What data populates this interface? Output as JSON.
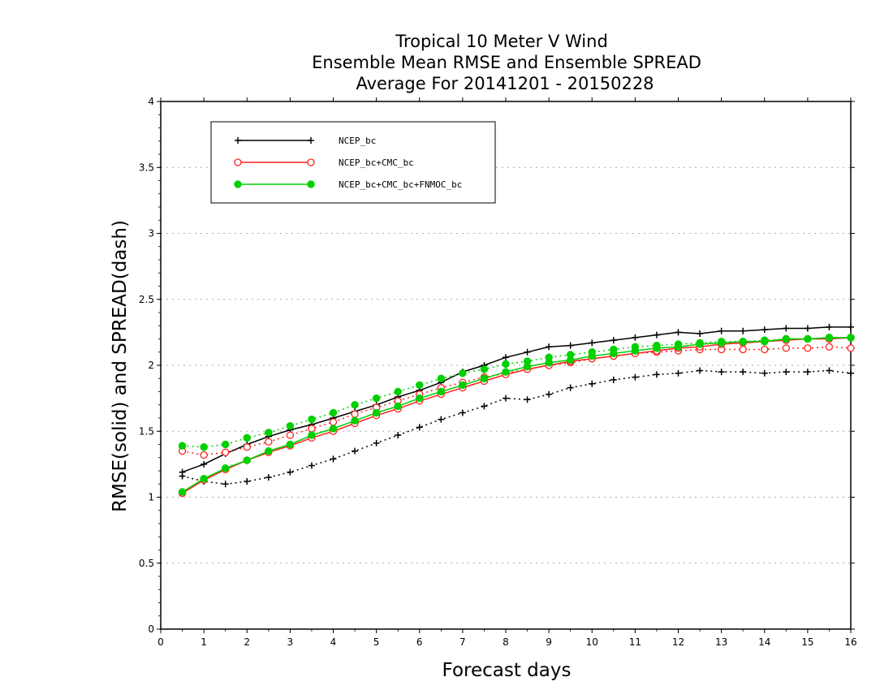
{
  "chart_data": {
    "type": "line",
    "title_lines": [
      "Tropical 10 Meter V Wind",
      "Ensemble Mean RMSE and Ensemble SPREAD",
      "Average For 20141201 - 20150228"
    ],
    "xlabel": "Forecast days",
    "ylabel": "RMSE(solid) and SPREAD(dash)",
    "xlim": [
      0,
      16
    ],
    "ylim": [
      0,
      4
    ],
    "xticks": [
      "0",
      "1",
      "2",
      "3",
      "4",
      "5",
      "6",
      "7",
      "8",
      "9",
      "10",
      "11",
      "12",
      "13",
      "14",
      "15",
      "16"
    ],
    "yticks": [
      "0",
      "0.5",
      "1",
      "1.5",
      "2",
      "2.5",
      "3",
      "3.5",
      "4"
    ],
    "grid": "horizontal dotted",
    "legend_position": "top-left",
    "x": [
      0.5,
      1,
      1.5,
      2,
      2.5,
      3,
      3.5,
      4,
      4.5,
      5,
      5.5,
      6,
      6.5,
      7,
      7.5,
      8,
      8.5,
      9,
      9.5,
      10,
      10.5,
      11,
      11.5,
      12,
      12.5,
      13,
      13.5,
      14,
      14.5,
      15,
      15.5,
      16
    ],
    "series": [
      {
        "name": "NCEP_bc",
        "color": "#000000",
        "marker": "plus",
        "rmse": [
          1.19,
          1.25,
          1.33,
          1.4,
          1.46,
          1.51,
          1.55,
          1.6,
          1.65,
          1.7,
          1.76,
          1.81,
          1.87,
          1.95,
          2.0,
          2.06,
          2.1,
          2.14,
          2.15,
          2.17,
          2.19,
          2.21,
          2.23,
          2.25,
          2.24,
          2.26,
          2.26,
          2.27,
          2.28,
          2.28,
          2.29,
          2.29
        ],
        "spread": [
          1.16,
          1.12,
          1.1,
          1.12,
          1.15,
          1.19,
          1.24,
          1.29,
          1.35,
          1.41,
          1.47,
          1.53,
          1.59,
          1.64,
          1.69,
          1.75,
          1.74,
          1.78,
          1.83,
          1.86,
          1.89,
          1.91,
          1.93,
          1.94,
          1.96,
          1.95,
          1.95,
          1.94,
          1.95,
          1.95,
          1.96,
          1.94
        ]
      },
      {
        "name": "NCEP_bc+CMC_bc",
        "color": "#ff2020",
        "marker": "open-circle",
        "rmse": [
          1.03,
          1.13,
          1.21,
          1.28,
          1.34,
          1.39,
          1.45,
          1.5,
          1.56,
          1.62,
          1.67,
          1.73,
          1.78,
          1.83,
          1.88,
          1.93,
          1.97,
          2.0,
          2.03,
          2.05,
          2.07,
          2.09,
          2.11,
          2.13,
          2.14,
          2.16,
          2.17,
          2.18,
          2.19,
          2.2,
          2.2,
          2.21
        ],
        "spread": [
          1.35,
          1.32,
          1.34,
          1.38,
          1.42,
          1.47,
          1.52,
          1.57,
          1.63,
          1.68,
          1.73,
          1.78,
          1.83,
          1.87,
          1.91,
          1.94,
          1.97,
          2.0,
          2.02,
          2.05,
          2.07,
          2.09,
          2.1,
          2.11,
          2.12,
          2.12,
          2.12,
          2.12,
          2.13,
          2.13,
          2.14,
          2.13
        ]
      },
      {
        "name": "NCEP_bc+CMC_bc+FNMOC_bc",
        "color": "#00d000",
        "marker": "filled-circle",
        "rmse": [
          1.04,
          1.14,
          1.22,
          1.28,
          1.35,
          1.4,
          1.47,
          1.52,
          1.58,
          1.64,
          1.69,
          1.75,
          1.8,
          1.85,
          1.9,
          1.95,
          1.99,
          2.02,
          2.04,
          2.07,
          2.09,
          2.11,
          2.13,
          2.14,
          2.16,
          2.17,
          2.18,
          2.18,
          2.2,
          2.2,
          2.21,
          2.21
        ],
        "spread": [
          1.39,
          1.38,
          1.4,
          1.45,
          1.49,
          1.54,
          1.59,
          1.64,
          1.7,
          1.75,
          1.8,
          1.85,
          1.9,
          1.94,
          1.97,
          2.01,
          2.03,
          2.06,
          2.08,
          2.1,
          2.12,
          2.14,
          2.15,
          2.16,
          2.17,
          2.18,
          2.18,
          2.19,
          2.2,
          2.2,
          2.21,
          2.21
        ]
      }
    ]
  }
}
